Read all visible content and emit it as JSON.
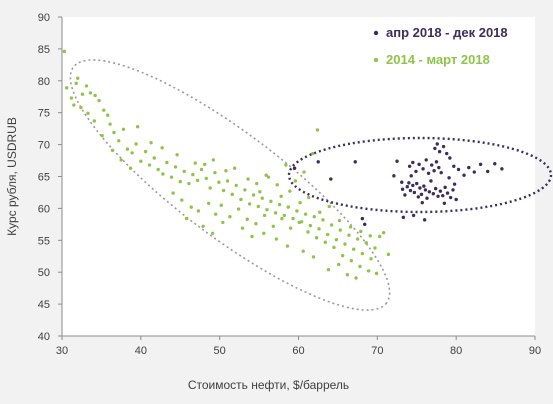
{
  "chart_data": {
    "type": "scatter",
    "xlabel": "Стоимость нефти, $/баррель",
    "ylabel": "Курс рубля, USDRUB",
    "xlim": [
      30,
      90
    ],
    "ylim": [
      40,
      90
    ],
    "xticks": [
      30,
      40,
      50,
      60,
      70,
      80,
      90
    ],
    "yticks": [
      40,
      45,
      50,
      55,
      60,
      65,
      70,
      75,
      80,
      85,
      90
    ],
    "grid": false,
    "legend_position": "top-right",
    "series": [
      {
        "name": "апр 2018 - дек 2018",
        "color": "#3b2d5e",
        "points": [
          [
            59.5,
            66.3
          ],
          [
            62.5,
            67.3
          ],
          [
            64.1,
            64.6
          ],
          [
            67.2,
            67.3
          ],
          [
            68.1,
            58.4
          ],
          [
            68.4,
            57.5
          ],
          [
            72.1,
            65.1
          ],
          [
            72.5,
            67.4
          ],
          [
            73.1,
            64.1
          ],
          [
            73.2,
            63.0
          ],
          [
            73.5,
            62.1
          ],
          [
            73.8,
            63.4
          ],
          [
            74.0,
            64.0
          ],
          [
            74.2,
            62.8
          ],
          [
            74.5,
            63.6
          ],
          [
            74.7,
            62.5
          ],
          [
            75.0,
            63.9
          ],
          [
            75.2,
            61.8
          ],
          [
            75.4,
            63.2
          ],
          [
            75.6,
            62.2
          ],
          [
            75.9,
            63.5
          ],
          [
            76.1,
            62.9
          ],
          [
            76.3,
            61.6
          ],
          [
            76.6,
            62.6
          ],
          [
            74.1,
            66.6
          ],
          [
            74.5,
            67.2
          ],
          [
            74.9,
            65.8
          ],
          [
            75.3,
            66.9
          ],
          [
            75.8,
            66.2
          ],
          [
            76.2,
            67.6
          ],
          [
            76.5,
            65.5
          ],
          [
            76.9,
            66.8
          ],
          [
            77.2,
            65.9
          ],
          [
            77.5,
            67.3
          ],
          [
            77.8,
            66.4
          ],
          [
            78.1,
            65.6
          ],
          [
            77.1,
            62.3
          ],
          [
            77.4,
            63.1
          ],
          [
            77.7,
            61.9
          ],
          [
            78.0,
            62.7
          ],
          [
            78.3,
            62.0
          ],
          [
            78.6,
            63.3
          ],
          [
            78.9,
            62.4
          ],
          [
            79.3,
            61.7
          ],
          [
            79.6,
            62.9
          ],
          [
            80.0,
            61.4
          ],
          [
            77.3,
            69.4
          ],
          [
            77.6,
            70.1
          ],
          [
            77.9,
            68.9
          ],
          [
            78.4,
            69.7
          ],
          [
            78.8,
            68.6
          ],
          [
            79.2,
            67.9
          ],
          [
            79.7,
            66.6
          ],
          [
            80.3,
            66.1
          ],
          [
            81.0,
            65.2
          ],
          [
            81.6,
            66.4
          ],
          [
            82.3,
            65.7
          ],
          [
            83.1,
            66.9
          ],
          [
            84.0,
            65.8
          ],
          [
            84.9,
            67.0
          ],
          [
            85.8,
            66.2
          ],
          [
            73.3,
            58.6
          ],
          [
            74.6,
            58.9
          ],
          [
            76.0,
            58.2
          ],
          [
            78.5,
            60.8
          ],
          [
            79.8,
            63.8
          ],
          [
            75.7,
            60.9
          ],
          [
            74.3,
            65.1
          ],
          [
            76.8,
            64.3
          ],
          [
            79.1,
            64.8
          ]
        ]
      },
      {
        "name": "2014 - март 2018",
        "color": "#8ec549",
        "points": [
          [
            30.3,
            84.6
          ],
          [
            30.6,
            78.9
          ],
          [
            31.2,
            77.3
          ],
          [
            31.5,
            76.2
          ],
          [
            32.0,
            80.4
          ],
          [
            32.4,
            75.8
          ],
          [
            33.1,
            79.2
          ],
          [
            33.6,
            78.1
          ],
          [
            34.2,
            77.7
          ],
          [
            34.7,
            76.9
          ],
          [
            35.3,
            75.4
          ],
          [
            35.8,
            74.6
          ],
          [
            36.1,
            73.2
          ],
          [
            36.6,
            71.9
          ],
          [
            37.2,
            70.6
          ],
          [
            37.8,
            72.4
          ],
          [
            38.3,
            69.3
          ],
          [
            38.9,
            68.7
          ],
          [
            39.4,
            70.1
          ],
          [
            40.0,
            67.4
          ],
          [
            40.6,
            68.9
          ],
          [
            41.1,
            66.8
          ],
          [
            41.7,
            67.9
          ],
          [
            42.2,
            66.1
          ],
          [
            42.8,
            65.4
          ],
          [
            43.3,
            67.2
          ],
          [
            43.9,
            64.9
          ],
          [
            44.4,
            66.5
          ],
          [
            45.0,
            64.2
          ],
          [
            45.5,
            65.8
          ],
          [
            46.1,
            63.9
          ],
          [
            46.6,
            65.3
          ],
          [
            47.2,
            64.4
          ],
          [
            47.7,
            66.1
          ],
          [
            48.3,
            64.7
          ],
          [
            48.8,
            63.2
          ],
          [
            49.4,
            65.6
          ],
          [
            49.9,
            64.1
          ],
          [
            50.5,
            62.8
          ],
          [
            51.0,
            64.3
          ],
          [
            51.6,
            62.2
          ],
          [
            52.1,
            63.6
          ],
          [
            52.7,
            61.4
          ],
          [
            53.2,
            62.9
          ],
          [
            53.8,
            60.7
          ],
          [
            54.3,
            62.1
          ],
          [
            54.9,
            60.3
          ],
          [
            55.4,
            61.6
          ],
          [
            56.0,
            59.8
          ],
          [
            56.5,
            61.1
          ],
          [
            57.1,
            59.3
          ],
          [
            57.6,
            60.6
          ],
          [
            58.2,
            58.9
          ],
          [
            58.7,
            60.2
          ],
          [
            59.3,
            58.4
          ],
          [
            59.8,
            59.6
          ],
          [
            60.4,
            57.9
          ],
          [
            60.9,
            59.1
          ],
          [
            61.5,
            57.3
          ],
          [
            62.0,
            58.7
          ],
          [
            62.6,
            56.8
          ],
          [
            63.1,
            58.2
          ],
          [
            63.7,
            55.9
          ],
          [
            64.2,
            57.4
          ],
          [
            64.8,
            55.1
          ],
          [
            65.3,
            56.6
          ],
          [
            65.9,
            54.4
          ],
          [
            66.4,
            55.8
          ],
          [
            67.0,
            53.6
          ],
          [
            67.5,
            55.2
          ],
          [
            68.1,
            52.9
          ],
          [
            68.6,
            54.6
          ],
          [
            69.2,
            52.1
          ],
          [
            69.7,
            53.8
          ],
          [
            70.3,
            55.6
          ],
          [
            70.8,
            56.2
          ],
          [
            71.4,
            52.8
          ],
          [
            45.2,
            61.3
          ],
          [
            46.4,
            60.2
          ],
          [
            47.3,
            59.6
          ],
          [
            48.6,
            60.8
          ],
          [
            49.5,
            59.1
          ],
          [
            50.2,
            60.5
          ],
          [
            51.3,
            58.7
          ],
          [
            52.4,
            59.9
          ],
          [
            53.5,
            58.3
          ],
          [
            54.6,
            57.6
          ],
          [
            55.7,
            58.9
          ],
          [
            56.8,
            57.2
          ],
          [
            57.9,
            58.4
          ],
          [
            59.0,
            56.9
          ],
          [
            60.1,
            57.8
          ],
          [
            61.2,
            56.3
          ],
          [
            62.3,
            55.4
          ],
          [
            63.4,
            54.7
          ],
          [
            64.5,
            53.9
          ],
          [
            65.6,
            52.6
          ],
          [
            66.7,
            51.8
          ],
          [
            67.8,
            50.9
          ],
          [
            68.9,
            50.2
          ],
          [
            66.2,
            49.6
          ],
          [
            67.3,
            49.1
          ],
          [
            65.1,
            51.2
          ],
          [
            63.8,
            50.4
          ],
          [
            69.9,
            49.8
          ],
          [
            62.4,
            72.3
          ],
          [
            61.8,
            68.6
          ],
          [
            59.6,
            64.3
          ],
          [
            60.7,
            65.7
          ],
          [
            58.4,
            66.8
          ],
          [
            57.3,
            63.7
          ],
          [
            56.2,
            64.9
          ],
          [
            55.1,
            62.6
          ],
          [
            39.6,
            72.8
          ],
          [
            41.3,
            70.3
          ],
          [
            42.7,
            69.5
          ],
          [
            44.6,
            68.4
          ],
          [
            46.9,
            67.1
          ],
          [
            48.1,
            66.9
          ],
          [
            49.2,
            67.6
          ],
          [
            50.8,
            65.9
          ],
          [
            51.9,
            66.3
          ],
          [
            53.6,
            64.6
          ],
          [
            54.7,
            63.9
          ],
          [
            55.9,
            65.2
          ],
          [
            57.8,
            61.9
          ],
          [
            58.9,
            62.7
          ],
          [
            60.2,
            60.9
          ],
          [
            61.3,
            61.7
          ],
          [
            62.7,
            59.4
          ],
          [
            63.9,
            60.3
          ],
          [
            65.2,
            58.1
          ],
          [
            66.6,
            57.1
          ],
          [
            67.9,
            56.4
          ],
          [
            69.1,
            55.7
          ],
          [
            37.5,
            67.6
          ],
          [
            38.7,
            66.3
          ],
          [
            36.4,
            69.1
          ],
          [
            35.1,
            71.4
          ],
          [
            34.1,
            73.7
          ],
          [
            33.3,
            74.9
          ],
          [
            32.6,
            77.9
          ],
          [
            31.8,
            79.6
          ],
          [
            44.1,
            62.4
          ],
          [
            45.8,
            58.4
          ],
          [
            47.9,
            57.2
          ],
          [
            49.1,
            56.1
          ],
          [
            50.4,
            57.8
          ],
          [
            52.9,
            56.9
          ],
          [
            54.1,
            55.6
          ],
          [
            55.6,
            56.1
          ],
          [
            57.2,
            55.2
          ],
          [
            58.6,
            54.1
          ],
          [
            60.6,
            53.3
          ],
          [
            61.9,
            52.4
          ]
        ]
      }
    ]
  }
}
